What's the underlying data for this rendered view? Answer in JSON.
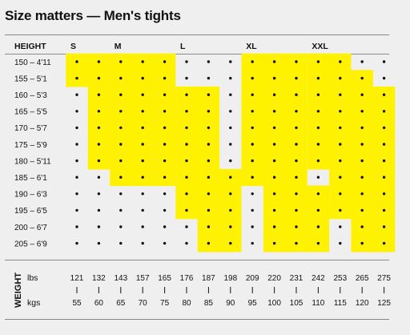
{
  "chart_data": {
    "type": "heatmap",
    "title": "Size matters — Men's tights",
    "height_header": "HEIGHT",
    "weight_label": "WEIGHT",
    "size_labels": [
      "S",
      "M",
      "L",
      "XL",
      "XXL"
    ],
    "height_rows": [
      "150 – 4'11",
      "155 – 5'1",
      "160 – 5'3",
      "165 – 5'5",
      "170 – 5'7",
      "175 – 5'9",
      "180 – 5'11",
      "185 – 6'1",
      "190 – 6'3",
      "195 – 6'5",
      "200 – 6'7",
      "205 – 6'9"
    ],
    "weight_units": [
      "lbs",
      "kgs"
    ],
    "lbs": [
      "121",
      "132",
      "143",
      "157",
      "165",
      "176",
      "187",
      "198",
      "209",
      "220",
      "231",
      "242",
      "253",
      "265",
      "275"
    ],
    "kgs": [
      "55",
      "60",
      "65",
      "70",
      "75",
      "80",
      "85",
      "90",
      "95",
      "100",
      "105",
      "110",
      "115",
      "120",
      "125"
    ],
    "highlight_color": "#fff200",
    "regions": [
      {
        "size": "S",
        "cells": {
          "0": [
            0,
            1
          ],
          "1": [
            0,
            1
          ],
          "2": [
            1,
            1
          ],
          "3": [
            1,
            1
          ],
          "4": [
            1,
            1
          ],
          "5": [
            1,
            1
          ],
          "6": [
            1,
            1
          ]
        }
      },
      {
        "size": "M",
        "cells": {
          "0": [
            2,
            4
          ],
          "1": [
            2,
            4
          ],
          "2": [
            2,
            4
          ],
          "3": [
            2,
            4
          ],
          "4": [
            2,
            4
          ],
          "5": [
            2,
            4
          ],
          "6": [
            2,
            4
          ],
          "7": [
            2,
            4
          ]
        }
      },
      {
        "size": "L",
        "cells": {
          "2": [
            5,
            6
          ],
          "3": [
            5,
            6
          ],
          "4": [
            5,
            6
          ],
          "5": [
            5,
            6
          ],
          "6": [
            5,
            6
          ],
          "7": [
            5,
            7
          ],
          "8": [
            5,
            7
          ],
          "9": [
            5,
            7
          ],
          "10": [
            6,
            7
          ],
          "11": [
            6,
            7
          ]
        }
      },
      {
        "size": "XL",
        "cells": {
          "0": [
            8,
            10
          ],
          "1": [
            8,
            10
          ],
          "2": [
            8,
            10
          ],
          "3": [
            8,
            10
          ],
          "4": [
            8,
            10
          ],
          "5": [
            8,
            10
          ],
          "6": [
            8,
            10
          ],
          "7": [
            8,
            10
          ],
          "8": [
            9,
            11
          ],
          "9": [
            9,
            11
          ],
          "10": [
            9,
            11
          ],
          "11": [
            9,
            11
          ]
        }
      },
      {
        "size": "XXL",
        "cells": {
          "0": [
            11,
            12
          ],
          "1": [
            11,
            13
          ],
          "2": [
            11,
            14
          ],
          "3": [
            11,
            14
          ],
          "4": [
            11,
            14
          ],
          "5": [
            11,
            14
          ],
          "6": [
            11,
            14
          ],
          "7": [
            12,
            14
          ],
          "8": [
            12,
            14
          ],
          "9": [
            12,
            14
          ],
          "10": [
            13,
            14
          ],
          "11": [
            13,
            14
          ]
        }
      }
    ]
  }
}
